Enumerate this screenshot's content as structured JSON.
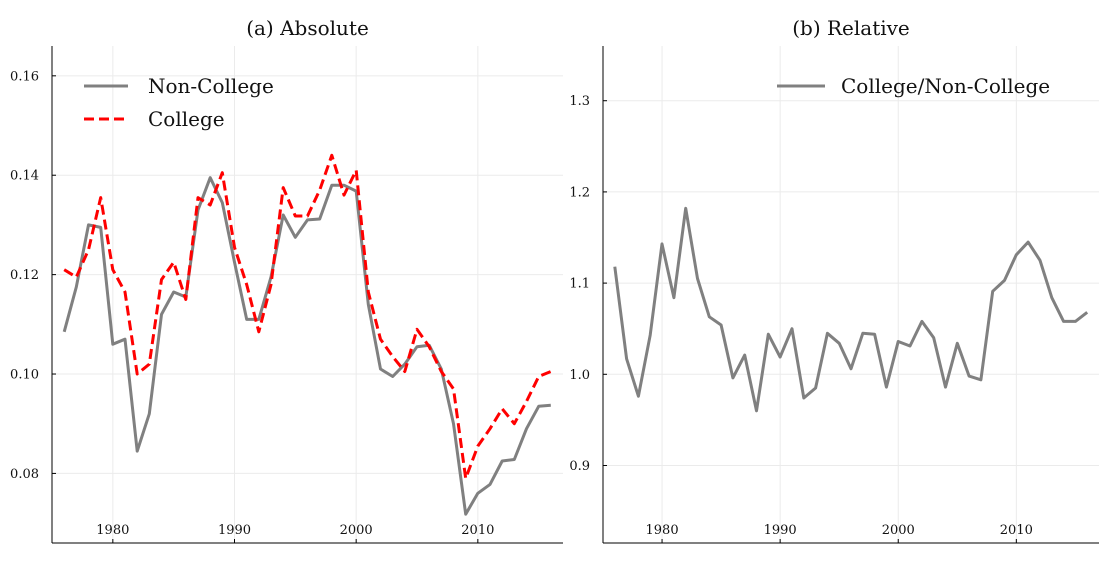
{
  "chart_data": [
    {
      "type": "line",
      "title": "(a) Absolute",
      "xlabel": "",
      "ylabel": "",
      "xlim": [
        1975,
        2017
      ],
      "ylim": [
        0.066,
        0.166
      ],
      "xticks": [
        1980,
        1990,
        2000,
        2010
      ],
      "xtick_labels": [
        "1980",
        "1990",
        "2000",
        "2010"
      ],
      "yticks": [
        0.08,
        0.1,
        0.12,
        0.14,
        0.16
      ],
      "ytick_labels": [
        "0.08",
        "0.10",
        "0.12",
        "0.14",
        "0.16"
      ],
      "grid": true,
      "legend_position": "top-left",
      "series": [
        {
          "name": "Non-College",
          "color": "#808080",
          "dash": "solid",
          "x": [
            1976,
            1977,
            1978,
            1979,
            1980,
            1981,
            1982,
            1983,
            1984,
            1985,
            1986,
            1987,
            1988,
            1989,
            1990,
            1991,
            1992,
            1993,
            1994,
            1995,
            1996,
            1997,
            1998,
            1999,
            2000,
            2001,
            2002,
            2003,
            2004,
            2005,
            2006,
            2007,
            2008,
            2009,
            2010,
            2011,
            2012,
            2013,
            2014,
            2015,
            2016
          ],
          "values": [
            0.1085,
            0.1175,
            0.13,
            0.1295,
            0.106,
            0.107,
            0.0845,
            0.092,
            0.112,
            0.1165,
            0.1155,
            0.133,
            0.1395,
            0.1345,
            0.1225,
            0.111,
            0.111,
            0.1195,
            0.132,
            0.1275,
            0.131,
            0.1312,
            0.138,
            0.138,
            0.1368,
            0.114,
            0.101,
            0.0995,
            0.102,
            0.1055,
            0.1058,
            0.101,
            0.09,
            0.0718,
            0.076,
            0.0778,
            0.0825,
            0.0828,
            0.089,
            0.0935,
            0.0937
          ]
        },
        {
          "name": "College",
          "color": "#ff0000",
          "dash": "dashed",
          "x": [
            1976,
            1977,
            1978,
            1979,
            1980,
            1981,
            1982,
            1983,
            1984,
            1985,
            1986,
            1987,
            1988,
            1989,
            1990,
            1991,
            1992,
            1993,
            1994,
            1995,
            1996,
            1997,
            1998,
            1999,
            2000,
            2001,
            2002,
            2003,
            2004,
            2005,
            2006,
            2007,
            2008,
            2009,
            2010,
            2011,
            2012,
            2013,
            2014,
            2015,
            2016
          ],
          "values": [
            0.121,
            0.1195,
            0.125,
            0.1355,
            0.121,
            0.1165,
            0.1,
            0.102,
            0.119,
            0.1225,
            0.115,
            0.1355,
            0.134,
            0.1405,
            0.1255,
            0.118,
            0.1085,
            0.118,
            0.1375,
            0.1318,
            0.1318,
            0.137,
            0.144,
            0.136,
            0.141,
            0.1165,
            0.107,
            0.1035,
            0.1005,
            0.109,
            0.1055,
            0.1005,
            0.097,
            0.079,
            0.0855,
            0.089,
            0.093,
            0.09,
            0.0945,
            0.0995,
            0.1005
          ]
        }
      ]
    },
    {
      "type": "line",
      "title": "(b) Relative",
      "xlabel": "",
      "ylabel": "",
      "xlim": [
        1975,
        2017
      ],
      "ylim": [
        0.815,
        1.36
      ],
      "xticks": [
        1980,
        1990,
        2000,
        2010
      ],
      "xtick_labels": [
        "1980",
        "1990",
        "2000",
        "2010"
      ],
      "yticks": [
        0.9,
        1.0,
        1.1,
        1.2,
        1.3
      ],
      "ytick_labels": [
        "0.9",
        "1.0",
        "1.1",
        "1.2",
        "1.3"
      ],
      "grid": true,
      "legend_position": "top-right",
      "series": [
        {
          "name": "College/Non-College",
          "color": "#808080",
          "dash": "solid",
          "x": [
            1976,
            1977,
            1978,
            1979,
            1980,
            1981,
            1982,
            1983,
            1984,
            1985,
            1986,
            1987,
            1988,
            1989,
            1990,
            1991,
            1992,
            1993,
            1994,
            1995,
            1996,
            1997,
            1998,
            1999,
            2000,
            2001,
            2002,
            2003,
            2004,
            2005,
            2006,
            2007,
            2008,
            2009,
            2010,
            2011,
            2012,
            2013,
            2014,
            2015,
            2016
          ],
          "values": [
            1.118,
            1.017,
            0.976,
            1.043,
            1.143,
            1.084,
            1.182,
            1.105,
            1.063,
            1.054,
            0.996,
            1.021,
            0.96,
            1.044,
            1.019,
            1.05,
            0.974,
            0.985,
            1.045,
            1.034,
            1.006,
            1.045,
            1.044,
            0.986,
            1.036,
            1.031,
            1.058,
            1.04,
            0.986,
            1.034,
            0.998,
            0.994,
            1.091,
            1.103,
            1.131,
            1.145,
            1.125,
            1.084,
            1.058,
            1.058,
            1.068
          ]
        }
      ]
    }
  ]
}
